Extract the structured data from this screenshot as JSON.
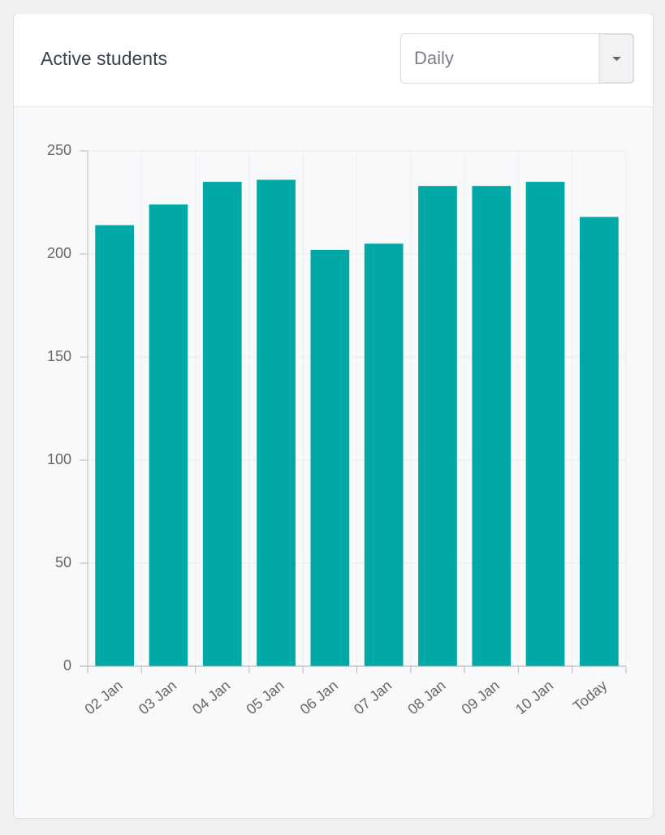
{
  "header": {
    "title": "Active students",
    "select": "Daily"
  },
  "chart_data": {
    "type": "bar",
    "categories": [
      "02 Jan",
      "03 Jan",
      "04 Jan",
      "05 Jan",
      "06 Jan",
      "07 Jan",
      "08 Jan",
      "09 Jan",
      "10 Jan",
      "Today"
    ],
    "values": [
      214,
      224,
      235,
      236,
      202,
      205,
      233,
      233,
      235,
      218
    ],
    "color": "#00a9a5",
    "ylim": [
      0,
      250
    ],
    "yticks": [
      0,
      50,
      100,
      150,
      200,
      250
    ],
    "grid": true
  }
}
